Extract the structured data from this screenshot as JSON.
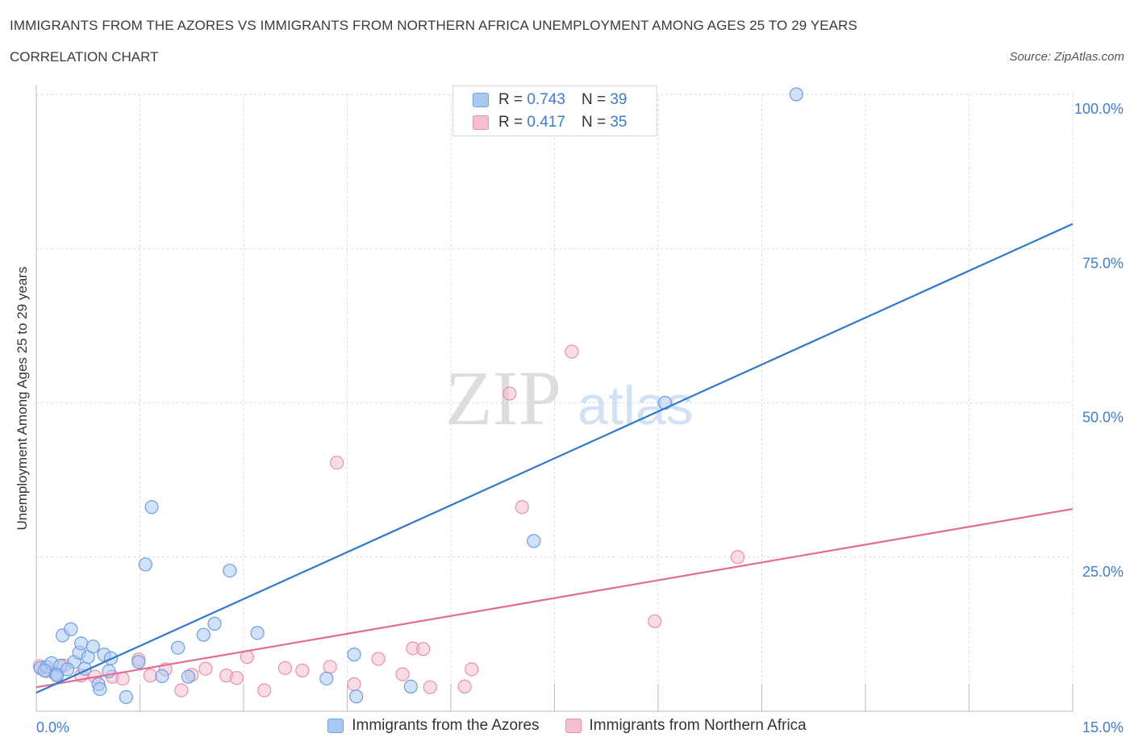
{
  "header": {
    "title": "IMMIGRANTS FROM THE AZORES VS IMMIGRANTS FROM NORTHERN AFRICA UNEMPLOYMENT AMONG AGES 25 TO 29 YEARS",
    "subtitle": "CORRELATION CHART",
    "source": "Source: ZipAtlas.com"
  },
  "legend": {
    "r_label": "R =",
    "n_label": "N =",
    "azores": {
      "r": "0.743",
      "n": "39"
    },
    "africa": {
      "r": "0.417",
      "n": "35"
    }
  },
  "watermark": {
    "zip": "ZIP",
    "atlas": "atlas"
  },
  "chart_data": {
    "type": "scatter",
    "title": "IMMIGRANTS FROM THE AZORES VS IMMIGRANTS FROM NORTHERN AFRICA UNEMPLOYMENT AMONG AGES 25 TO 29 YEARS",
    "xlabel": "",
    "ylabel": "Unemployment Among Ages 25 to 29 years",
    "xlim": [
      0,
      15
    ],
    "ylim": [
      0,
      100
    ],
    "x_tick_labels": [
      "0.0%",
      "15.0%"
    ],
    "y_ticks": [
      25,
      50,
      75,
      100
    ],
    "y_tick_labels": [
      "25.0%",
      "50.0%",
      "75.0%",
      "100.0%"
    ],
    "grid": true,
    "colors": {
      "azores_fill": "#a9c8f2",
      "azores_stroke": "#6e9fe0",
      "azores_line": "#2f78d0",
      "africa_fill": "#f6bfd0",
      "africa_stroke": "#eb8fae",
      "africa_line": "#e56b95",
      "tick_text": "#3d7dd6"
    },
    "series": [
      {
        "name": "Immigrants from the Azores",
        "r": 0.743,
        "n": 39,
        "trend": {
          "x": [
            0,
            15
          ],
          "y": [
            3,
            79
          ]
        },
        "points": [
          [
            0.06,
            7.0
          ],
          [
            0.15,
            7.2
          ],
          [
            0.22,
            7.8
          ],
          [
            0.28,
            6.0
          ],
          [
            0.35,
            7.4
          ],
          [
            0.38,
            12.3
          ],
          [
            0.5,
            13.3
          ],
          [
            0.55,
            8.0
          ],
          [
            0.62,
            9.5
          ],
          [
            0.65,
            11.0
          ],
          [
            0.7,
            6.9
          ],
          [
            0.75,
            8.8
          ],
          [
            0.82,
            10.5
          ],
          [
            0.9,
            4.4
          ],
          [
            0.92,
            3.6
          ],
          [
            0.98,
            9.2
          ],
          [
            1.05,
            6.5
          ],
          [
            1.08,
            8.6
          ],
          [
            1.3,
            2.3
          ],
          [
            1.48,
            8.0
          ],
          [
            1.58,
            23.8
          ],
          [
            1.67,
            33.1
          ],
          [
            1.82,
            5.7
          ],
          [
            2.05,
            10.3
          ],
          [
            2.2,
            5.6
          ],
          [
            2.42,
            12.4
          ],
          [
            2.58,
            14.2
          ],
          [
            2.8,
            22.8
          ],
          [
            3.2,
            12.7
          ],
          [
            4.2,
            5.3
          ],
          [
            4.6,
            9.2
          ],
          [
            4.63,
            2.4
          ],
          [
            5.42,
            4.0
          ],
          [
            7.2,
            27.6
          ],
          [
            9.1,
            50.0
          ],
          [
            11.0,
            100.0
          ],
          [
            0.12,
            6.6
          ],
          [
            0.3,
            5.8
          ],
          [
            0.45,
            6.8
          ]
        ]
      },
      {
        "name": "Immigrants from Northern Africa",
        "r": 0.417,
        "n": 35,
        "trend": {
          "x": [
            0,
            15
          ],
          "y": [
            3.9,
            32.8
          ]
        },
        "points": [
          [
            0.05,
            7.3
          ],
          [
            0.15,
            6.5
          ],
          [
            0.3,
            6.0
          ],
          [
            0.4,
            7.4
          ],
          [
            0.65,
            5.8
          ],
          [
            0.85,
            5.6
          ],
          [
            1.1,
            5.6
          ],
          [
            1.25,
            5.3
          ],
          [
            1.48,
            8.4
          ],
          [
            1.65,
            5.8
          ],
          [
            1.87,
            6.8
          ],
          [
            2.1,
            3.4
          ],
          [
            2.25,
            5.9
          ],
          [
            2.45,
            6.9
          ],
          [
            2.75,
            5.8
          ],
          [
            2.9,
            5.4
          ],
          [
            3.05,
            8.8
          ],
          [
            3.3,
            3.4
          ],
          [
            3.6,
            7.0
          ],
          [
            3.85,
            6.6
          ],
          [
            4.25,
            7.2
          ],
          [
            4.35,
            40.3
          ],
          [
            4.6,
            4.4
          ],
          [
            4.95,
            8.5
          ],
          [
            5.3,
            6.0
          ],
          [
            5.45,
            10.2
          ],
          [
            5.6,
            10.1
          ],
          [
            5.7,
            3.9
          ],
          [
            6.2,
            4.0
          ],
          [
            6.3,
            6.8
          ],
          [
            6.85,
            51.5
          ],
          [
            7.03,
            33.1
          ],
          [
            7.75,
            58.3
          ],
          [
            8.95,
            14.6
          ],
          [
            10.15,
            25.0
          ]
        ]
      }
    ]
  },
  "bottom_legend": {
    "azores": "Immigrants from the Azores",
    "africa": "Immigrants from Northern Africa"
  }
}
